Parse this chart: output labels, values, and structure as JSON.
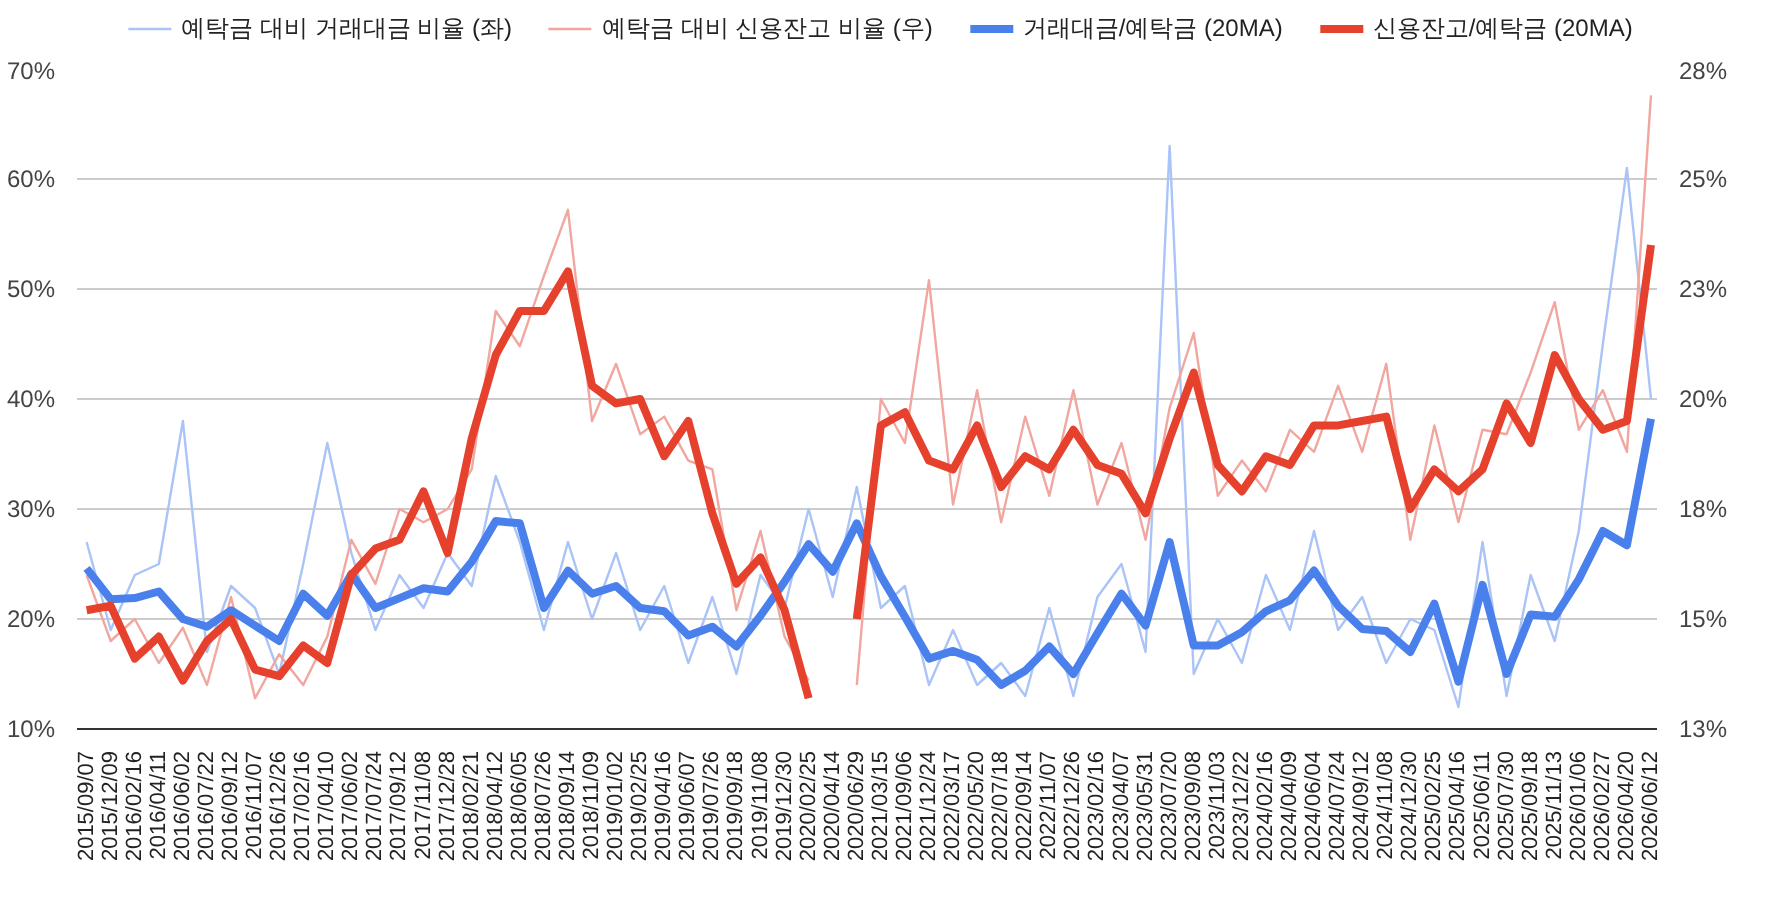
{
  "chart_data": {
    "type": "line",
    "categories": [
      "2015/09/07",
      "2015/12/09",
      "2016/02/16",
      "2016/04/11",
      "2016/06/02",
      "2016/07/22",
      "2016/09/12",
      "2016/11/07",
      "2016/12/26",
      "2017/02/16",
      "2017/04/10",
      "2017/06/02",
      "2017/07/24",
      "2017/09/12",
      "2017/11/08",
      "2017/12/28",
      "2018/02/21",
      "2018/04/12",
      "2018/06/05",
      "2018/07/26",
      "2018/09/14",
      "2018/11/09",
      "2019/01/02",
      "2019/02/25",
      "2019/04/16",
      "2019/06/07",
      "2019/07/26",
      "2019/09/18",
      "2019/11/08",
      "2019/12/30",
      "2020/02/25",
      "2020/04/14",
      "2020/06/29",
      "2021/03/15",
      "2021/09/06",
      "2021/12/24",
      "2022/03/17",
      "2022/05/20",
      "2022/07/18",
      "2022/09/14",
      "2022/11/07",
      "2022/12/26",
      "2023/02/16",
      "2023/04/07",
      "2023/05/31",
      "2023/07/20",
      "2023/09/08",
      "2023/11/03",
      "2023/12/22",
      "2024/02/16",
      "2024/04/09",
      "2024/06/04",
      "2024/07/24",
      "2024/09/12",
      "2024/11/08",
      "2024/12/30",
      "2025/02/25",
      "2025/04/16",
      "2025/06/11",
      "2025/07/30",
      "2025/09/18",
      "2025/11/13",
      "2026/01/06",
      "2026/02/27",
      "2026/04/20",
      "2026/06/12"
    ],
    "series": [
      {
        "name": "예탁금 대비 거래대금 비율 (좌)",
        "color": "#aac4f7",
        "axis": "y",
        "values": [
          27,
          19,
          24,
          25,
          38,
          17,
          23,
          21,
          15,
          25,
          36,
          26,
          19,
          24,
          21,
          26,
          23,
          33,
          27,
          19,
          27,
          20,
          26,
          19,
          23,
          16,
          22,
          15,
          24,
          21,
          30,
          22,
          32,
          21,
          23,
          14,
          19,
          14,
          16,
          13,
          21,
          13,
          22,
          25,
          17,
          63,
          15,
          20,
          16,
          24,
          19,
          28,
          19,
          22,
          16,
          20,
          19,
          12,
          27,
          13,
          24,
          18,
          28,
          45,
          61,
          40
        ]
      },
      {
        "name": "예탁금 대비 신용잔고 비율 (우)",
        "color": "#f1a79f",
        "axis": "y2",
        "values": [
          16,
          14.5,
          15,
          14,
          14.8,
          13.5,
          15.5,
          13.2,
          14.2,
          13.5,
          14.6,
          16.8,
          15.8,
          17.5,
          17.2,
          17.5,
          18.4,
          22,
          21.2,
          22.8,
          24.3,
          19.5,
          20.8,
          19.2,
          19.6,
          18.6,
          18.4,
          15.2,
          17,
          14.6,
          13.6,
          null,
          13.5,
          20,
          19,
          22.7,
          17.6,
          20.2,
          17.2,
          19.6,
          17.8,
          20.2,
          17.6,
          19,
          16.8,
          19.8,
          21.5,
          17.8,
          18.6,
          17.9,
          19.3,
          18.8,
          20.3,
          18.8,
          20.8,
          16.8,
          19.4,
          17.2,
          19.3,
          19.2,
          20.6,
          22.2,
          19.3,
          20.2,
          18.8,
          26.9
        ]
      },
      {
        "name": "거래대금/예탁금 (20MA)",
        "color": "#4a80ec",
        "axis": "y",
        "values": [
          24.6,
          21.8,
          21.9,
          22.5,
          20,
          19.3,
          20.8,
          19.4,
          18,
          22.3,
          20.3,
          24.1,
          21,
          21.9,
          22.8,
          22.5,
          25.2,
          28.9,
          28.7,
          21,
          24.4,
          22.3,
          23,
          21,
          20.7,
          18.5,
          19.3,
          17.5,
          20.3,
          23.4,
          26.8,
          24.3,
          28.7,
          23.9,
          20.2,
          16.4,
          17.1,
          16.3,
          14,
          15.3,
          17.5,
          15,
          18.7,
          22.3,
          19.4,
          27,
          17.6,
          17.6,
          18.8,
          20.7,
          21.7,
          24.4,
          21.2,
          19.1,
          18.9,
          17,
          21.4,
          14.3,
          23.1,
          15,
          20.4,
          20.2,
          23.6,
          28,
          26.7,
          38.2
        ]
      },
      {
        "name": "신용잔고/예탁금 (20MA)",
        "color": "#e5412d",
        "axis": "y2",
        "values": [
          15.2,
          15.3,
          14.1,
          14.6,
          13.6,
          14.5,
          15,
          13.85,
          13.7,
          14.4,
          14,
          16,
          16.6,
          16.8,
          17.9,
          16.5,
          19.1,
          21,
          22,
          22,
          22.9,
          20.3,
          19.9,
          20,
          18.7,
          19.5,
          17.4,
          15.8,
          16.4,
          15.2,
          13.2,
          null,
          15,
          19.4,
          19.7,
          18.6,
          18.4,
          19.4,
          18,
          18.7,
          18.4,
          19.3,
          18.5,
          18.3,
          17.4,
          19.1,
          20.6,
          18.5,
          17.9,
          18.7,
          18.5,
          19.4,
          19.4,
          19.5,
          19.6,
          17.5,
          18.4,
          17.9,
          18.4,
          19.9,
          19,
          21,
          20,
          19.3,
          19.5,
          23.5
        ]
      }
    ],
    "ylim": [
      10,
      70
    ],
    "yticks": [
      {
        "value": 10,
        "label": "10%"
      },
      {
        "value": 20,
        "label": "20%"
      },
      {
        "value": 30,
        "label": "30%"
      },
      {
        "value": 40,
        "label": "40%"
      },
      {
        "value": 50,
        "label": "50%"
      },
      {
        "value": 60,
        "label": "60%"
      },
      {
        "value": 70,
        "label": "70%"
      }
    ],
    "y2lim": [
      12.5,
      27.5
    ],
    "y2ticks": [
      {
        "value": 12.5,
        "label": "13%"
      },
      {
        "value": 15,
        "label": "15%"
      },
      {
        "value": 17.5,
        "label": "18%"
      },
      {
        "value": 20,
        "label": "20%"
      },
      {
        "value": 22.5,
        "label": "23%"
      },
      {
        "value": 25,
        "label": "25%"
      },
      {
        "value": 27.5,
        "label": "28%"
      }
    ],
    "grid": "y",
    "legend": "top",
    "marker": "none",
    "line_style": "solid"
  }
}
